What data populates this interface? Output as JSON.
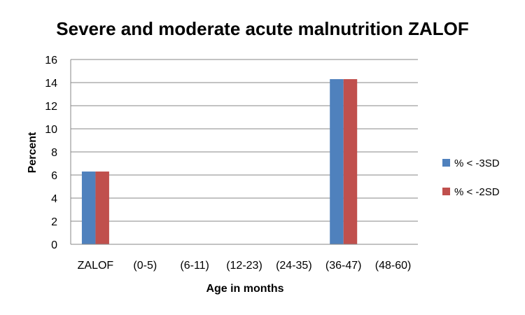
{
  "chart_data": {
    "type": "bar",
    "title": "Severe and moderate acute malnutrition ZALOF",
    "xlabel": "Age in months",
    "ylabel": "Percent",
    "categories": [
      "ZALOF",
      "(0-5)",
      "(6-11)",
      "(12-23)",
      "(24-35)",
      "(36-47)",
      "(48-60)"
    ],
    "series": [
      {
        "name": "% < -3SD",
        "color": "#4F81BD",
        "values": [
          6.3,
          0,
          0,
          0,
          0,
          14.3,
          0
        ]
      },
      {
        "name": "% < -2SD",
        "color": "#C0504D",
        "values": [
          6.3,
          0,
          0,
          0,
          0,
          14.3,
          0
        ]
      }
    ],
    "ylim": [
      0,
      16
    ],
    "yticks": [
      0,
      2,
      4,
      6,
      8,
      10,
      12,
      14,
      16
    ],
    "grid": true,
    "legend": "right"
  }
}
